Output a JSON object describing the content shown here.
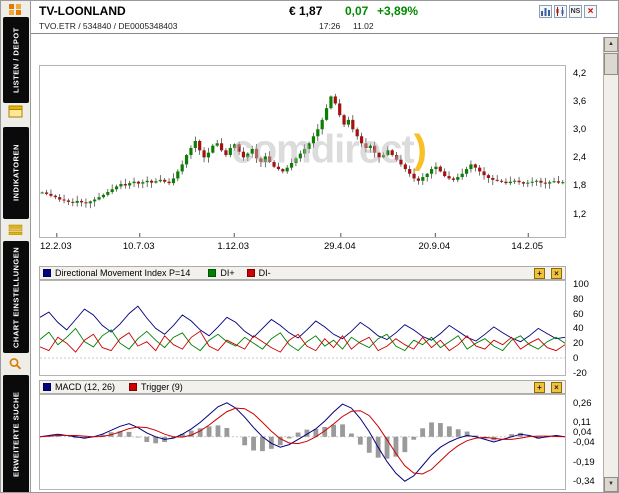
{
  "window": {
    "title": "TV-LOONLAND",
    "symbol_line": "TVO.ETR  /  534840  /  DE0005348403",
    "price": "€ 1,87",
    "change_abs": "0,07",
    "change_pct": "+3,89%",
    "time": "17:26",
    "date": "11.02",
    "icons": {
      "news_label": "NS",
      "close_glyph": "×"
    }
  },
  "sidebar": {
    "tabs": [
      "LISTEN / DEPOT",
      "INDIKATOREN",
      "CHART EINSTELLUNGEN",
      "ERWEITERTE SUCHE"
    ]
  },
  "watermark": {
    "text": "comdirect",
    "paren": ")"
  },
  "panel_icons": {
    "settings_glyph": "+",
    "close_glyph": "×"
  },
  "scrollbar": {
    "up_glyph": "▲",
    "down_glyph": "▼"
  },
  "colors": {
    "positive": "#008a00",
    "candle_up": "#0b8000",
    "candle_down": "#a51111",
    "adx": "#000080",
    "di_plus": "#008000",
    "di_minus": "#cc0000",
    "macd": "#000080",
    "trigger": "#cc0000",
    "histogram": "#9a9a9a"
  },
  "chart_data": [
    {
      "type": "candlestick",
      "instrument": "TV-LOONLAND",
      "x_tick_labels": [
        "12.2.03",
        "10.7.03",
        "1.12.03",
        "29.4.04",
        "20.9.04",
        "14.2.05"
      ],
      "x_tick_pos": [
        0.032,
        0.19,
        0.37,
        0.573,
        0.753,
        0.93
      ],
      "y_tick_values": [
        4.2,
        3.6,
        3.0,
        2.4,
        1.8,
        1.2
      ],
      "y_tick_labels": [
        "4,2",
        "3,6",
        "3,0",
        "2,4",
        "1,8",
        "1,2"
      ],
      "ylim": [
        0.7,
        4.35
      ],
      "close": [
        1.65,
        1.62,
        1.58,
        1.55,
        1.5,
        1.48,
        1.45,
        1.43,
        1.47,
        1.44,
        1.42,
        1.46,
        1.5,
        1.55,
        1.6,
        1.66,
        1.72,
        1.78,
        1.83,
        1.8,
        1.85,
        1.88,
        1.84,
        1.87,
        1.9,
        1.86,
        1.89,
        1.92,
        1.88,
        1.85,
        1.95,
        2.1,
        2.25,
        2.45,
        2.6,
        2.75,
        2.55,
        2.4,
        2.5,
        2.65,
        2.7,
        2.55,
        2.45,
        2.6,
        2.68,
        2.52,
        2.4,
        2.48,
        2.58,
        2.38,
        2.3,
        2.42,
        2.3,
        2.2,
        2.15,
        2.1,
        2.18,
        2.28,
        2.38,
        2.48,
        2.58,
        2.7,
        2.85,
        3.0,
        3.2,
        3.45,
        3.7,
        3.55,
        3.3,
        3.1,
        3.2,
        3.0,
        2.85,
        2.7,
        2.6,
        2.65,
        2.5,
        2.4,
        2.45,
        2.55,
        2.45,
        2.35,
        2.25,
        2.15,
        2.05,
        1.95,
        1.9,
        1.98,
        2.05,
        2.15,
        2.2,
        2.1,
        2.0,
        1.95,
        1.92,
        1.98,
        2.05,
        2.15,
        2.25,
        2.18,
        2.1,
        2.02,
        1.96,
        1.92,
        1.9,
        1.88,
        1.85,
        1.88,
        1.9,
        1.87,
        1.84,
        1.86,
        1.88,
        1.9,
        1.86,
        1.84,
        1.87,
        1.89,
        1.86,
        1.87
      ]
    },
    {
      "type": "line",
      "title": "Directional Movement Index P=14",
      "y_tick_values": [
        100,
        80,
        60,
        40,
        20,
        0,
        -20
      ],
      "y_tick_labels": [
        "100",
        "80",
        "60",
        "40",
        "20",
        "0",
        "-20"
      ],
      "ylim": [
        -23,
        104
      ],
      "series": [
        {
          "name": "ADX",
          "color": "#000080",
          "values": [
            55,
            62,
            48,
            38,
            52,
            66,
            58,
            44,
            35,
            46,
            60,
            70,
            54,
            40,
            32,
            44,
            58,
            50,
            38,
            30,
            42,
            55,
            48,
            36,
            28,
            40,
            52,
            44,
            34,
            27,
            38,
            50,
            42,
            32,
            26,
            36,
            48,
            40,
            30,
            25,
            34,
            45,
            38,
            29,
            24,
            33,
            44,
            36,
            28,
            23,
            32,
            42,
            34,
            27,
            22,
            30,
            40,
            33,
            26,
            28
          ]
        },
        {
          "name": "DI+",
          "color": "#008000",
          "values": [
            25,
            35,
            18,
            28,
            40,
            22,
            15,
            30,
            38,
            20,
            12,
            26,
            36,
            24,
            14,
            28,
            34,
            18,
            10,
            24,
            32,
            22,
            16,
            28,
            20,
            12,
            26,
            34,
            18,
            10,
            22,
            30,
            16,
            24,
            12,
            28,
            20,
            14,
            26,
            32,
            16,
            10,
            24,
            18,
            28,
            14,
            22,
            30,
            12,
            20,
            26,
            16,
            10,
            24,
            30,
            18,
            12,
            22,
            28,
            20
          ]
        },
        {
          "name": "DI-",
          "color": "#cc0000",
          "values": [
            15,
            10,
            28,
            20,
            8,
            24,
            32,
            14,
            10,
            26,
            34,
            16,
            22,
            10,
            30,
            18,
            12,
            28,
            36,
            16,
            10,
            24,
            18,
            12,
            30,
            22,
            14,
            8,
            24,
            32,
            16,
            10,
            26,
            14,
            30,
            12,
            22,
            28,
            10,
            16,
            26,
            18,
            12,
            28,
            14,
            24,
            10,
            18,
            30,
            16,
            12,
            24,
            18,
            28,
            12,
            20,
            26,
            14,
            10,
            18
          ]
        }
      ]
    },
    {
      "type": "line",
      "title": "MACD (12, 26)",
      "trigger_label": "Trigger (9)",
      "y_tick_values": [
        0.26,
        0.11,
        0.04,
        -0.04,
        -0.19,
        -0.34
      ],
      "y_tick_labels": [
        "0,26",
        "0,11",
        "0,04",
        "-0,04",
        "-0,19",
        "-0,34"
      ],
      "ylim": [
        -0.4,
        0.32
      ],
      "histogram_color": "#9a9a9a",
      "series": [
        {
          "name": "MACD (12, 26)",
          "color": "#000080",
          "values": [
            0.0,
            0.01,
            0.02,
            0.01,
            0.0,
            -0.01,
            0.0,
            0.02,
            0.05,
            0.08,
            0.1,
            0.07,
            0.03,
            0.0,
            -0.02,
            -0.01,
            0.02,
            0.06,
            0.11,
            0.17,
            0.23,
            0.26,
            0.22,
            0.15,
            0.07,
            0.0,
            -0.05,
            -0.08,
            -0.06,
            -0.02,
            0.02,
            0.06,
            0.12,
            0.19,
            0.25,
            0.22,
            0.14,
            0.04,
            -0.08,
            -0.19,
            -0.28,
            -0.34,
            -0.3,
            -0.22,
            -0.14,
            -0.08,
            -0.04,
            -0.01,
            0.01,
            0.0,
            -0.02,
            -0.04,
            -0.02,
            0.0,
            0.02,
            0.01,
            -0.01,
            0.0,
            0.01,
            0.0
          ]
        },
        {
          "name": "Trigger (9)",
          "color": "#cc0000",
          "derived": "sma4"
        }
      ]
    }
  ]
}
